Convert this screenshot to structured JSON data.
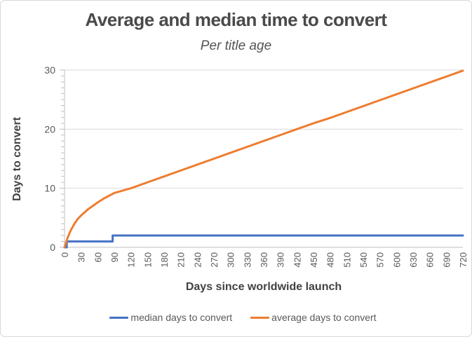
{
  "chart_data": {
    "type": "line",
    "title": "Average and median time to convert",
    "subtitle": "Per title age",
    "xlabel": "Days since worldwide launch",
    "ylabel": "Days to convert",
    "xlim": [
      0,
      720
    ],
    "ylim": [
      0,
      30
    ],
    "x_ticks": [
      0,
      30,
      60,
      90,
      120,
      150,
      180,
      210,
      240,
      270,
      300,
      330,
      360,
      390,
      420,
      450,
      480,
      510,
      540,
      570,
      600,
      630,
      660,
      690,
      720
    ],
    "y_ticks": [
      0,
      10,
      20,
      30
    ],
    "y_minor_tick_interval": 1,
    "grid": "horizontal-major",
    "legend_position": "bottom",
    "axis_color": "#bfbfbf",
    "gridline_color": "#d9d9d9",
    "tick_label_color": "#595959",
    "series": [
      {
        "name": "median days to convert",
        "color": "#4472C4",
        "points": [
          [
            0,
            0
          ],
          [
            4,
            0
          ],
          [
            4,
            1
          ],
          [
            87,
            1
          ],
          [
            87,
            2
          ],
          [
            720,
            2
          ]
        ]
      },
      {
        "name": "average days to convert",
        "color": "#ED7D31",
        "points": [
          [
            0,
            0
          ],
          [
            3,
            0.9
          ],
          [
            6,
            1.7
          ],
          [
            9,
            2.4
          ],
          [
            12,
            3.0
          ],
          [
            15,
            3.5
          ],
          [
            18,
            4.0
          ],
          [
            21,
            4.4
          ],
          [
            24,
            4.8
          ],
          [
            27,
            5.1
          ],
          [
            30,
            5.4
          ],
          [
            36,
            5.9
          ],
          [
            42,
            6.4
          ],
          [
            48,
            6.8
          ],
          [
            54,
            7.2
          ],
          [
            60,
            7.6
          ],
          [
            70,
            8.2
          ],
          [
            80,
            8.7
          ],
          [
            90,
            9.2
          ],
          [
            105,
            9.6
          ],
          [
            120,
            10.0
          ],
          [
            150,
            11.0
          ],
          [
            180,
            12.0
          ],
          [
            210,
            13.0
          ],
          [
            240,
            14.0
          ],
          [
            270,
            15.0
          ],
          [
            300,
            16.0
          ],
          [
            330,
            17.0
          ],
          [
            360,
            18.0
          ],
          [
            390,
            19.0
          ],
          [
            420,
            20.0
          ],
          [
            450,
            21.0
          ],
          [
            480,
            21.9
          ],
          [
            510,
            22.9
          ],
          [
            540,
            23.9
          ],
          [
            570,
            24.9
          ],
          [
            600,
            25.9
          ],
          [
            630,
            26.9
          ],
          [
            660,
            27.9
          ],
          [
            690,
            28.9
          ],
          [
            720,
            29.9
          ]
        ]
      }
    ]
  }
}
